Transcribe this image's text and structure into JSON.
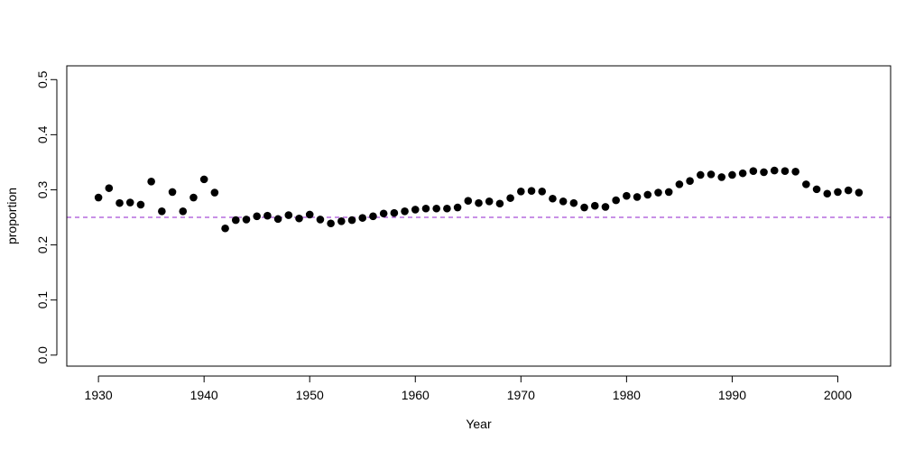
{
  "chart_data": {
    "type": "scatter",
    "title": "",
    "xlabel": "Year",
    "ylabel": "proportion",
    "xlim": [
      1927,
      2005
    ],
    "ylim": [
      -0.02,
      0.525
    ],
    "x_ticks": [
      1930,
      1940,
      1950,
      1960,
      1970,
      1980,
      1990,
      2000
    ],
    "x_tick_labels": [
      "1930",
      "1940",
      "1950",
      "1960",
      "1970",
      "1980",
      "1990",
      "2000"
    ],
    "y_ticks": [
      0.0,
      0.1,
      0.2,
      0.3,
      0.4,
      0.5
    ],
    "y_tick_labels": [
      "0.0",
      "0.1",
      "0.2",
      "0.3",
      "0.4",
      "0.5"
    ],
    "grid": false,
    "legend": "none",
    "reference_line": {
      "y": 0.25,
      "style": "dashed",
      "color": "#A64DD6"
    },
    "point_color": "#000000",
    "series": [
      {
        "x": [
          1930,
          1931,
          1932,
          1933,
          1934,
          1935,
          1936,
          1937,
          1938,
          1939,
          1940,
          1941,
          1942,
          1943,
          1944,
          1945,
          1946,
          1947,
          1948,
          1949,
          1950,
          1951,
          1952,
          1953,
          1954,
          1955,
          1956,
          1957,
          1958,
          1959,
          1960,
          1961,
          1962,
          1963,
          1964,
          1965,
          1966,
          1967,
          1968,
          1969,
          1970,
          1971,
          1972,
          1973,
          1974,
          1975,
          1976,
          1977,
          1978,
          1979,
          1980,
          1981,
          1982,
          1983,
          1984,
          1985,
          1986,
          1987,
          1988,
          1989,
          1990,
          1991,
          1992,
          1993,
          1994,
          1995,
          1996,
          1997,
          1998,
          1999,
          2000,
          2001,
          2002
        ],
        "y": [
          0.286,
          0.303,
          0.276,
          0.277,
          0.273,
          0.315,
          0.261,
          0.296,
          0.261,
          0.286,
          0.319,
          0.295,
          0.23,
          0.245,
          0.246,
          0.252,
          0.253,
          0.247,
          0.254,
          0.248,
          0.255,
          0.246,
          0.239,
          0.243,
          0.245,
          0.249,
          0.252,
          0.257,
          0.258,
          0.261,
          0.264,
          0.266,
          0.266,
          0.266,
          0.268,
          0.28,
          0.276,
          0.279,
          0.275,
          0.285,
          0.297,
          0.298,
          0.297,
          0.284,
          0.279,
          0.276,
          0.268,
          0.271,
          0.269,
          0.281,
          0.289,
          0.287,
          0.291,
          0.295,
          0.296,
          0.31,
          0.316,
          0.327,
          0.328,
          0.323,
          0.327,
          0.33,
          0.334,
          0.332,
          0.335,
          0.334,
          0.333,
          0.31,
          0.301,
          0.293,
          0.296,
          0.299,
          0.295
        ]
      }
    ]
  }
}
